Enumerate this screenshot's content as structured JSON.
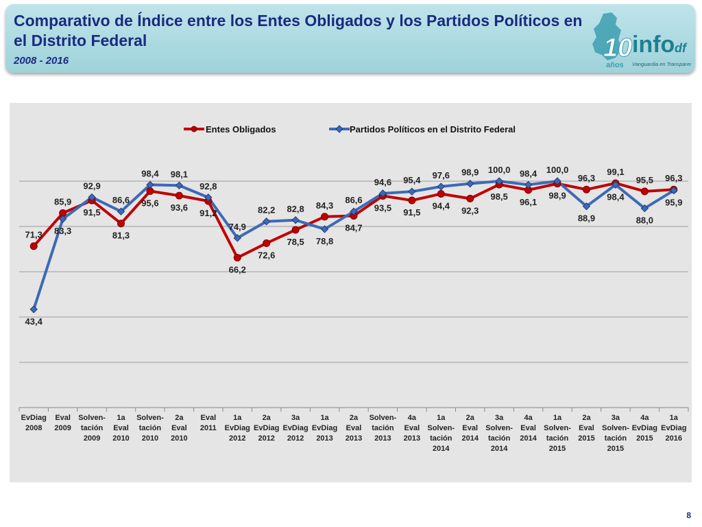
{
  "header": {
    "title": "Comparativo de Índice entre los Entes Obligados y los Partidos Políticos en el Distrito Federal",
    "subtitle": "2008 - 2016"
  },
  "logo": {
    "years": "10",
    "years_word": "años",
    "brand": "info",
    "brand_suffix": "df",
    "tagline": "Vanguardia en Transparencia"
  },
  "page_number": "8",
  "colors": {
    "series1": "#c00000",
    "series2": "#3c6ab8",
    "background": "#e5e5e5"
  },
  "chart_data": {
    "type": "line",
    "ylim": [
      0,
      100
    ],
    "categories": [
      [
        "EvDiag",
        "2008"
      ],
      [
        "Eval",
        "2009"
      ],
      [
        "Solven-",
        "tación",
        "2009"
      ],
      [
        "1a",
        "Eval",
        "2010"
      ],
      [
        "Solven-",
        "tación",
        "2010"
      ],
      [
        "2a",
        "Eval",
        "2010"
      ],
      [
        "Eval",
        "2011"
      ],
      [
        "1a",
        "EvDiag",
        "2012"
      ],
      [
        "2a",
        "EvDiag",
        "2012"
      ],
      [
        "3a",
        "EvDiag",
        "2012"
      ],
      [
        "1a",
        "EvDiag",
        "2013"
      ],
      [
        "2a",
        "Eval",
        "2013"
      ],
      [
        "Solven-",
        "tación",
        "2013"
      ],
      [
        "4a",
        "Eval",
        "2013"
      ],
      [
        "1a",
        "Solven-",
        "tación",
        "2014"
      ],
      [
        "2a",
        "Eval",
        "2014"
      ],
      [
        "3a",
        "Solven-",
        "tación",
        "2014"
      ],
      [
        "4a",
        "Eval",
        "2014"
      ],
      [
        "1a",
        "Solven-",
        "tación",
        "2015"
      ],
      [
        "2a",
        "Eval",
        "2015"
      ],
      [
        "3a",
        "Solven-",
        "tación",
        "2015"
      ],
      [
        "4a",
        "EvDiag",
        "2015"
      ],
      [
        "1a",
        "EvDiag",
        "2016"
      ]
    ],
    "series": [
      {
        "name": "Entes Obligados",
        "values": [
          71.3,
          85.9,
          91.5,
          81.3,
          95.6,
          93.6,
          91.2,
          66.2,
          72.6,
          78.5,
          84.3,
          84.7,
          93.5,
          91.5,
          94.4,
          92.3,
          98.5,
          96.1,
          98.9,
          96.3,
          99.1,
          95.5,
          96.3
        ],
        "labels": [
          "71,3",
          "85,9",
          "91,5",
          "81,3",
          "95,6",
          "93,6",
          "91,2",
          "66,2",
          "72,6",
          "78,5",
          "84,3",
          "84,7",
          "93,5",
          "91,5",
          "94,4",
          "92,3",
          "98,5",
          "96,1",
          "98,9",
          "96,3",
          "99,1",
          "95,5",
          "96,3"
        ]
      },
      {
        "name": "Partidos Políticos en el Distrito Federal",
        "values": [
          43.4,
          83.3,
          92.9,
          86.6,
          98.4,
          98.1,
          92.8,
          74.9,
          82.2,
          82.8,
          78.8,
          86.6,
          94.6,
          95.4,
          97.6,
          98.9,
          100.0,
          98.4,
          100.0,
          88.9,
          98.4,
          88.0,
          95.9
        ],
        "labels": [
          "43,4",
          "83,3",
          "92,9",
          "86,6",
          "98,4",
          "98,1",
          "92,8",
          "74,9",
          "82,2",
          "82,8",
          "78,8",
          "86,6",
          "94,6",
          "95,4",
          "97,6",
          "98,9",
          "100,0",
          "98,4",
          "100,0",
          "88,9",
          "98,4",
          "88,0",
          "95,9"
        ]
      }
    ]
  }
}
